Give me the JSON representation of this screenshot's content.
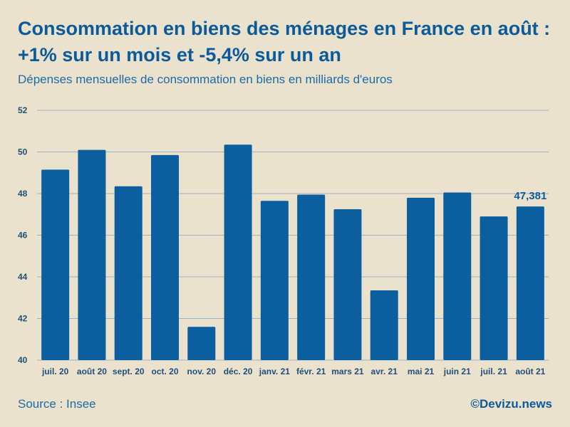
{
  "header": {
    "title": "Consommation en biens des ménages en France en août : +1% sur un mois et -5,4% sur un an",
    "subtitle": "Dépenses mensuelles de consommation en biens en milliards d'euros"
  },
  "footer": {
    "source": "Source : Insee",
    "brand": "©Devizu.news"
  },
  "colors": {
    "bar": "#0b5f9e",
    "grid": "#9db3c4",
    "background": "#ebe2ce"
  },
  "chart_data": {
    "type": "bar",
    "title": "Consommation en biens des ménages en France en août : +1% sur un mois et -5,4% sur un an",
    "subtitle": "Dépenses mensuelles de consommation en biens en milliards d'euros",
    "xlabel": "",
    "ylabel": "",
    "categories": [
      "juil. 20",
      "août 20",
      "sept. 20",
      "oct. 20",
      "nov. 20",
      "déc. 20",
      "janv. 21",
      "févr. 21",
      "mars 21",
      "avr. 21",
      "mai 21",
      "juin 21",
      "juil. 21",
      "août 21"
    ],
    "values": [
      49.15,
      50.1,
      48.35,
      49.85,
      41.6,
      50.35,
      47.65,
      47.95,
      47.25,
      43.35,
      47.8,
      48.05,
      46.9,
      47.381
    ],
    "ylim": [
      40,
      52
    ],
    "yticks": [
      40,
      42,
      44,
      46,
      48,
      50,
      52
    ],
    "grid": true,
    "data_labels": [
      {
        "index": 13,
        "text": "47,381"
      }
    ]
  }
}
